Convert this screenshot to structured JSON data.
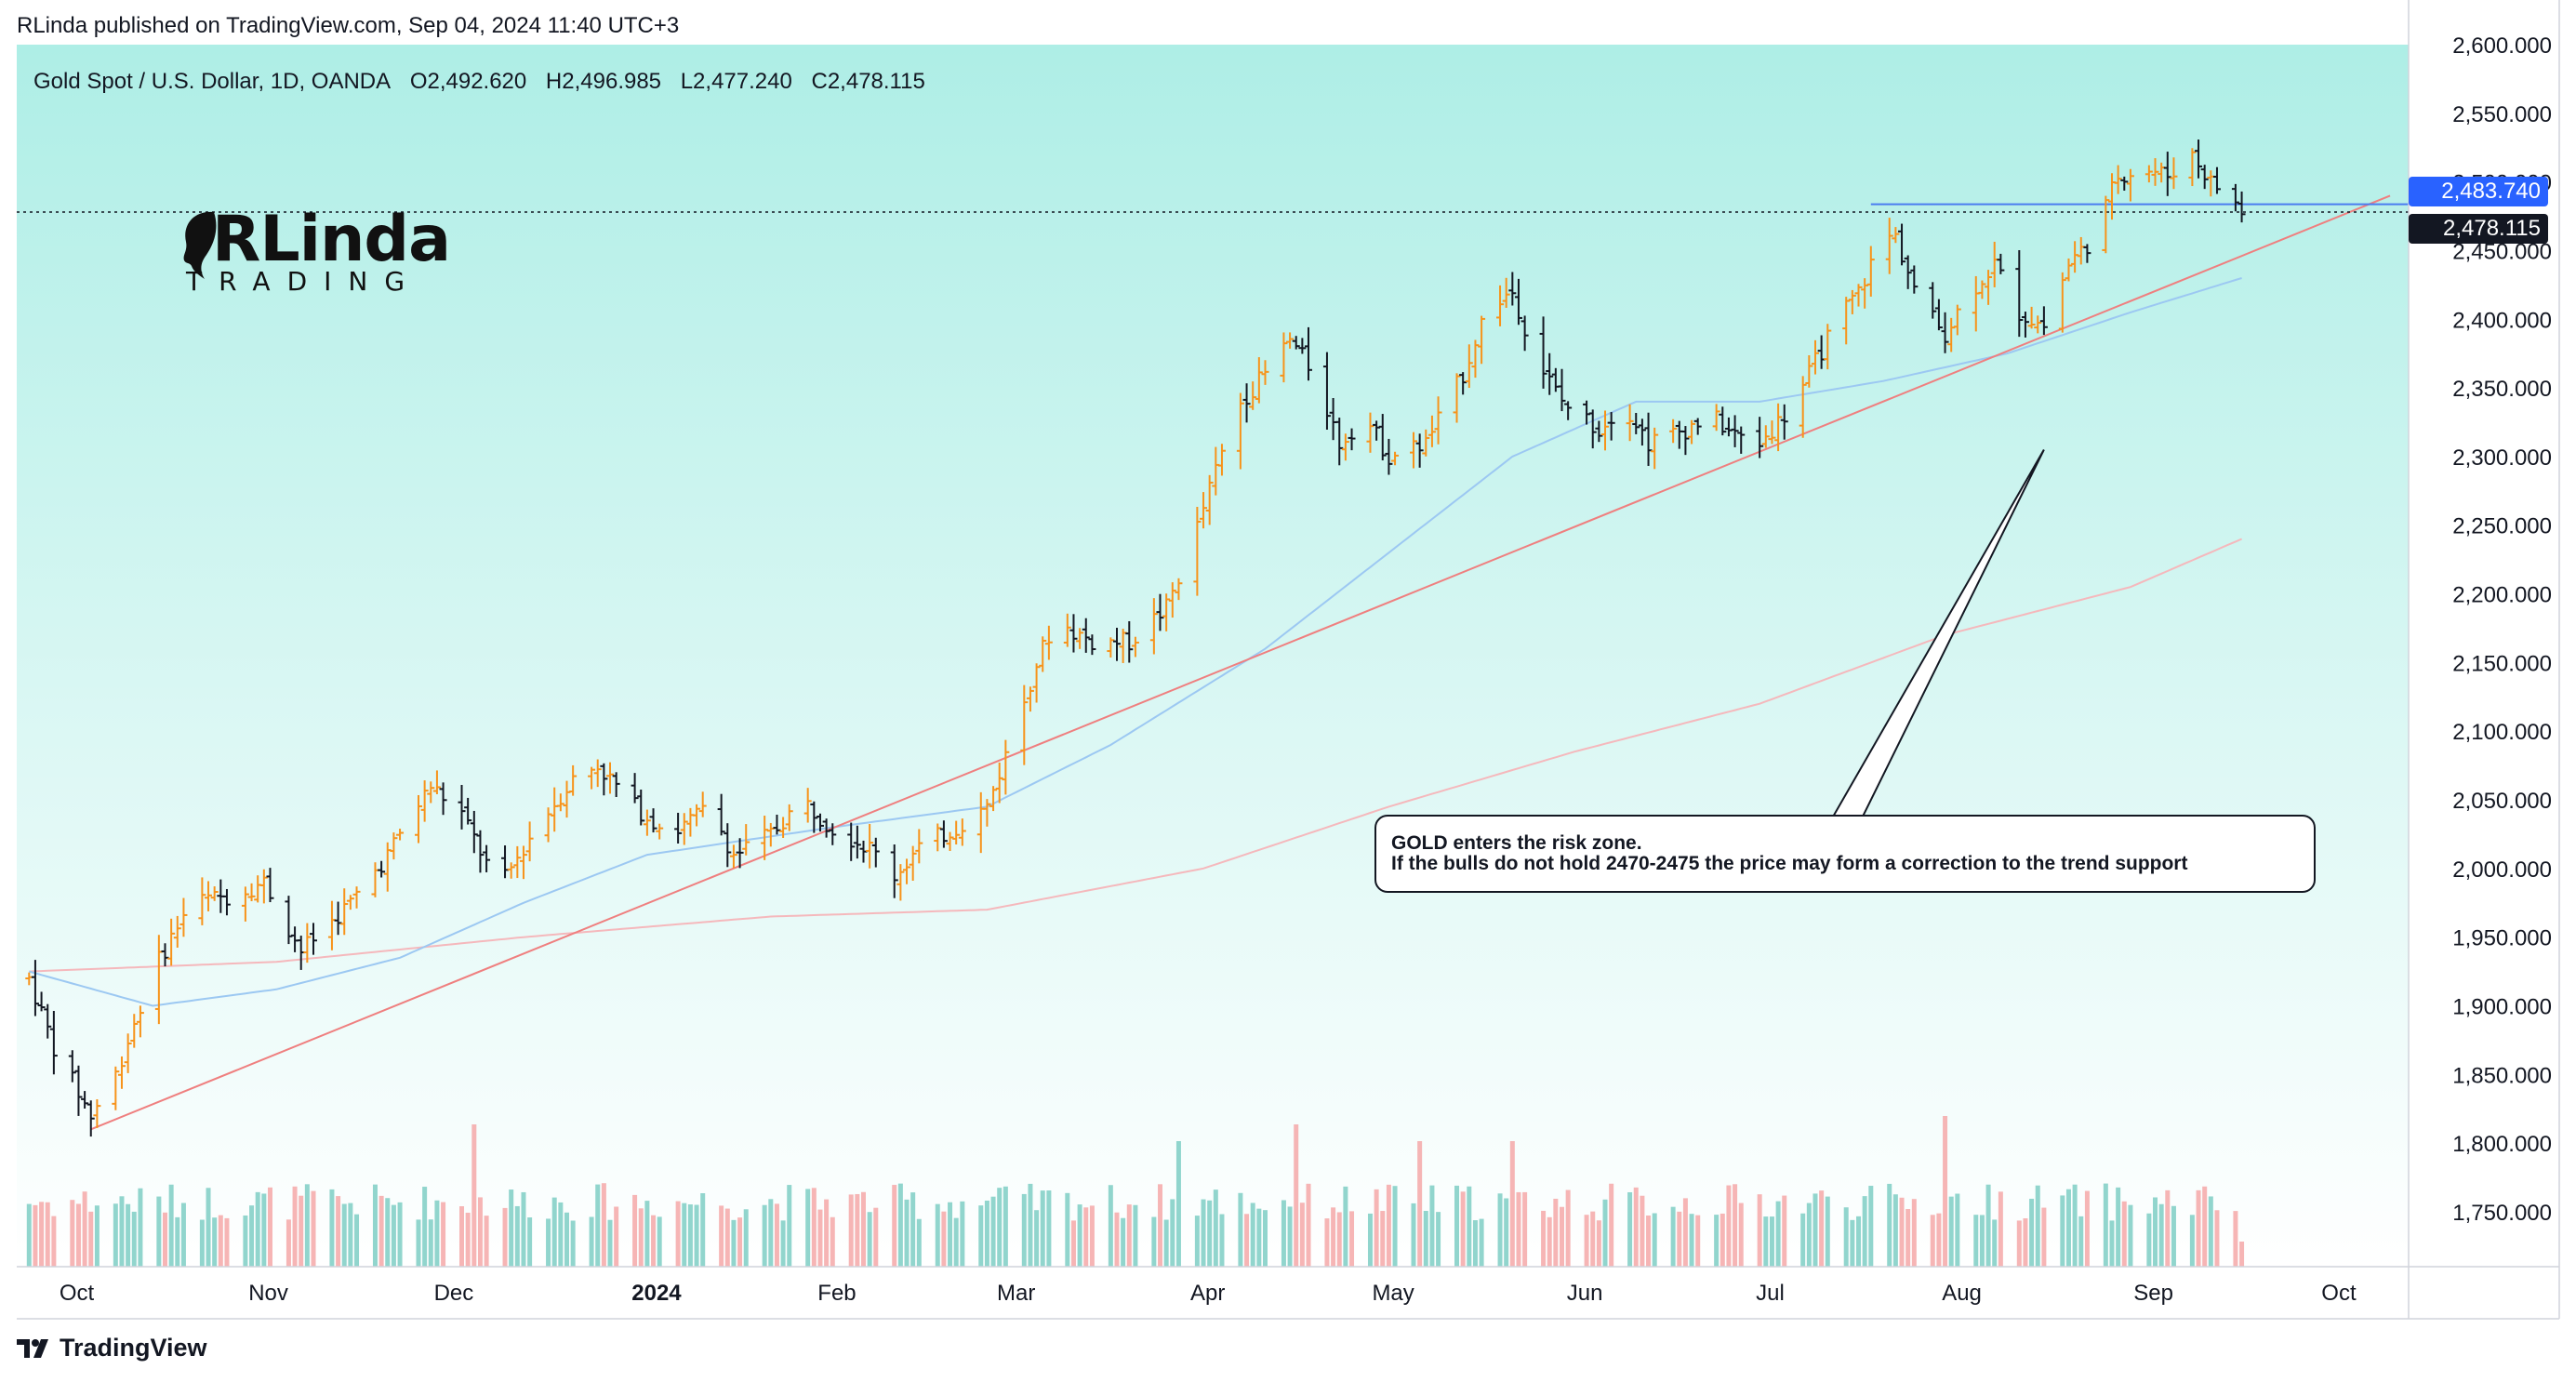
{
  "header": {
    "published_by": "RLinda published on TradingView.com, Sep 04, 2024 11:40 UTC+3"
  },
  "symbol": {
    "name": "Gold Spot / U.S. Dollar, 1D, OANDA",
    "open": "O2,492.620",
    "high": "H2,496.985",
    "low": "L2,477.240",
    "close": "C2,478.115"
  },
  "logo": {
    "main": "RLinda",
    "sub": "TRADING"
  },
  "annotation": {
    "line1": "GOLD enters the risk zone.",
    "line2": "If the bulls do not hold 2470-2475 the price may form a correction to the trend support"
  },
  "price_labels": {
    "resistance": "2,483.740",
    "last": "2,478.115"
  },
  "footer": {
    "brand": "TradingView"
  },
  "colors": {
    "up": "#f7931a",
    "down": "#131722",
    "bg_top": "#aeeee6",
    "bg_bottom": "#ffffff",
    "trendline": "#ef7f7f",
    "ma_fast": "#9cc8f2",
    "ma_slow": "#f5b8bc",
    "vol_up": "#7ecec4",
    "vol_down": "#f5a8a8",
    "resistance_label": "#2962ff",
    "last_label": "#131722"
  },
  "chart_data": {
    "type": "ohlc",
    "title": "Gold Spot / U.S. Dollar, 1D, OANDA",
    "y_axis": {
      "range": [
        1710,
        2600
      ],
      "ticks": [
        "2,600.000",
        "2,550.000",
        "2,500.000",
        "2,450.000",
        "2,400.000",
        "2,350.000",
        "2,300.000",
        "2,250.000",
        "2,200.000",
        "2,150.000",
        "2,100.000",
        "2,050.000",
        "2,000.000",
        "1,950.000",
        "1,900.000",
        "1,850.000",
        "1,800.000",
        "1,750.000"
      ],
      "tick_values": [
        2600,
        2550,
        2500,
        2450,
        2400,
        2350,
        2300,
        2250,
        2200,
        2150,
        2100,
        2050,
        2000,
        1950,
        1900,
        1850,
        1800,
        1750
      ]
    },
    "x_axis": {
      "labels": [
        {
          "text": "Oct",
          "day": 5,
          "bold": false
        },
        {
          "text": "Nov",
          "day": 36,
          "bold": false
        },
        {
          "text": "Dec",
          "day": 66,
          "bold": false
        },
        {
          "text": "2024",
          "day": 97,
          "bold": true
        },
        {
          "text": "Feb",
          "day": 128,
          "bold": false
        },
        {
          "text": "Mar",
          "day": 157,
          "bold": false
        },
        {
          "text": "Apr",
          "day": 188,
          "bold": false
        },
        {
          "text": "May",
          "day": 218,
          "bold": false
        },
        {
          "text": "Jun",
          "day": 249,
          "bold": false
        },
        {
          "text": "Jul",
          "day": 279,
          "bold": false
        },
        {
          "text": "Aug",
          "day": 310,
          "bold": false
        },
        {
          "text": "Sep",
          "day": 341,
          "bold": false
        },
        {
          "text": "Oct",
          "day": 371,
          "bold": false
        }
      ],
      "day_range": [
        -2,
        385
      ]
    },
    "waypoints": [
      {
        "day": 0,
        "price": 1920
      },
      {
        "day": 4,
        "price": 1870
      },
      {
        "day": 10,
        "price": 1820
      },
      {
        "day": 14,
        "price": 1850
      },
      {
        "day": 20,
        "price": 1925
      },
      {
        "day": 26,
        "price": 1975
      },
      {
        "day": 32,
        "price": 1980
      },
      {
        "day": 38,
        "price": 1990
      },
      {
        "day": 44,
        "price": 1940
      },
      {
        "day": 52,
        "price": 1975
      },
      {
        "day": 58,
        "price": 2010
      },
      {
        "day": 62,
        "price": 2040
      },
      {
        "day": 65,
        "price": 2060
      },
      {
        "day": 70,
        "price": 2040
      },
      {
        "day": 76,
        "price": 1985
      },
      {
        "day": 82,
        "price": 2030
      },
      {
        "day": 88,
        "price": 2065
      },
      {
        "day": 92,
        "price": 2075
      },
      {
        "day": 98,
        "price": 2045
      },
      {
        "day": 104,
        "price": 2025
      },
      {
        "day": 110,
        "price": 2045
      },
      {
        "day": 114,
        "price": 2010
      },
      {
        "day": 120,
        "price": 2025
      },
      {
        "day": 125,
        "price": 2050
      },
      {
        "day": 130,
        "price": 2030
      },
      {
        "day": 136,
        "price": 2015
      },
      {
        "day": 140,
        "price": 1995
      },
      {
        "day": 144,
        "price": 2015
      },
      {
        "day": 150,
        "price": 2030
      },
      {
        "day": 155,
        "price": 2045
      },
      {
        "day": 159,
        "price": 2095
      },
      {
        "day": 163,
        "price": 2150
      },
      {
        "day": 166,
        "price": 2180
      },
      {
        "day": 172,
        "price": 2165
      },
      {
        "day": 178,
        "price": 2165
      },
      {
        "day": 184,
        "price": 2190
      },
      {
        "day": 188,
        "price": 2235
      },
      {
        "day": 192,
        "price": 2290
      },
      {
        "day": 196,
        "price": 2340
      },
      {
        "day": 200,
        "price": 2360
      },
      {
        "day": 204,
        "price": 2385
      },
      {
        "day": 208,
        "price": 2360
      },
      {
        "day": 212,
        "price": 2310
      },
      {
        "day": 216,
        "price": 2330
      },
      {
        "day": 220,
        "price": 2300
      },
      {
        "day": 226,
        "price": 2310
      },
      {
        "day": 232,
        "price": 2360
      },
      {
        "day": 236,
        "price": 2410
      },
      {
        "day": 240,
        "price": 2420
      },
      {
        "day": 244,
        "price": 2370
      },
      {
        "day": 248,
        "price": 2340
      },
      {
        "day": 254,
        "price": 2320
      },
      {
        "day": 258,
        "price": 2340
      },
      {
        "day": 262,
        "price": 2310
      },
      {
        "day": 268,
        "price": 2320
      },
      {
        "day": 272,
        "price": 2330
      },
      {
        "day": 276,
        "price": 2315
      },
      {
        "day": 280,
        "price": 2310
      },
      {
        "day": 284,
        "price": 2330
      },
      {
        "day": 288,
        "price": 2360
      },
      {
        "day": 292,
        "price": 2395
      },
      {
        "day": 296,
        "price": 2420
      },
      {
        "day": 300,
        "price": 2460
      },
      {
        "day": 302,
        "price": 2460
      },
      {
        "day": 306,
        "price": 2410
      },
      {
        "day": 310,
        "price": 2390
      },
      {
        "day": 314,
        "price": 2420
      },
      {
        "day": 318,
        "price": 2440
      },
      {
        "day": 322,
        "price": 2405
      },
      {
        "day": 326,
        "price": 2395
      },
      {
        "day": 330,
        "price": 2440
      },
      {
        "day": 334,
        "price": 2460
      },
      {
        "day": 338,
        "price": 2505
      },
      {
        "day": 342,
        "price": 2510
      },
      {
        "day": 346,
        "price": 2505
      },
      {
        "day": 350,
        "price": 2520
      },
      {
        "day": 353,
        "price": 2500
      },
      {
        "day": 356,
        "price": 2490
      },
      {
        "day": 358,
        "price": 2478
      }
    ],
    "ma_fast": [
      {
        "day": 0,
        "price": 1925
      },
      {
        "day": 20,
        "price": 1900
      },
      {
        "day": 40,
        "price": 1912
      },
      {
        "day": 60,
        "price": 1935
      },
      {
        "day": 80,
        "price": 1975
      },
      {
        "day": 100,
        "price": 2010
      },
      {
        "day": 130,
        "price": 2030
      },
      {
        "day": 155,
        "price": 2045
      },
      {
        "day": 175,
        "price": 2090
      },
      {
        "day": 200,
        "price": 2160
      },
      {
        "day": 220,
        "price": 2230
      },
      {
        "day": 240,
        "price": 2300
      },
      {
        "day": 260,
        "price": 2340
      },
      {
        "day": 280,
        "price": 2340
      },
      {
        "day": 300,
        "price": 2355
      },
      {
        "day": 320,
        "price": 2375
      },
      {
        "day": 340,
        "price": 2405
      },
      {
        "day": 358,
        "price": 2430
      }
    ],
    "ma_slow": [
      {
        "day": 0,
        "price": 1925
      },
      {
        "day": 40,
        "price": 1932
      },
      {
        "day": 80,
        "price": 1950
      },
      {
        "day": 120,
        "price": 1965
      },
      {
        "day": 155,
        "price": 1970
      },
      {
        "day": 190,
        "price": 2000
      },
      {
        "day": 220,
        "price": 2045
      },
      {
        "day": 250,
        "price": 2085
      },
      {
        "day": 280,
        "price": 2120
      },
      {
        "day": 310,
        "price": 2170
      },
      {
        "day": 340,
        "price": 2205
      },
      {
        "day": 358,
        "price": 2240
      }
    ],
    "trendline": {
      "day1": 10,
      "price1": 1810,
      "day2": 382,
      "price2": 2490
    },
    "resistance": {
      "day1": 298,
      "day2": 385,
      "price": 2483.74
    },
    "last_price": 2478.115,
    "volume_spikes": [
      {
        "day": 72,
        "v": 1.7
      },
      {
        "day": 186,
        "v": 1.5
      },
      {
        "day": 201,
        "v": 1.7
      },
      {
        "day": 205,
        "v": 1.7
      },
      {
        "day": 225,
        "v": 1.5
      },
      {
        "day": 314,
        "v": 2.3
      },
      {
        "day": 310,
        "v": 1.8
      },
      {
        "day": 300,
        "v": 1.6
      },
      {
        "day": 240,
        "v": 1.5
      }
    ]
  }
}
